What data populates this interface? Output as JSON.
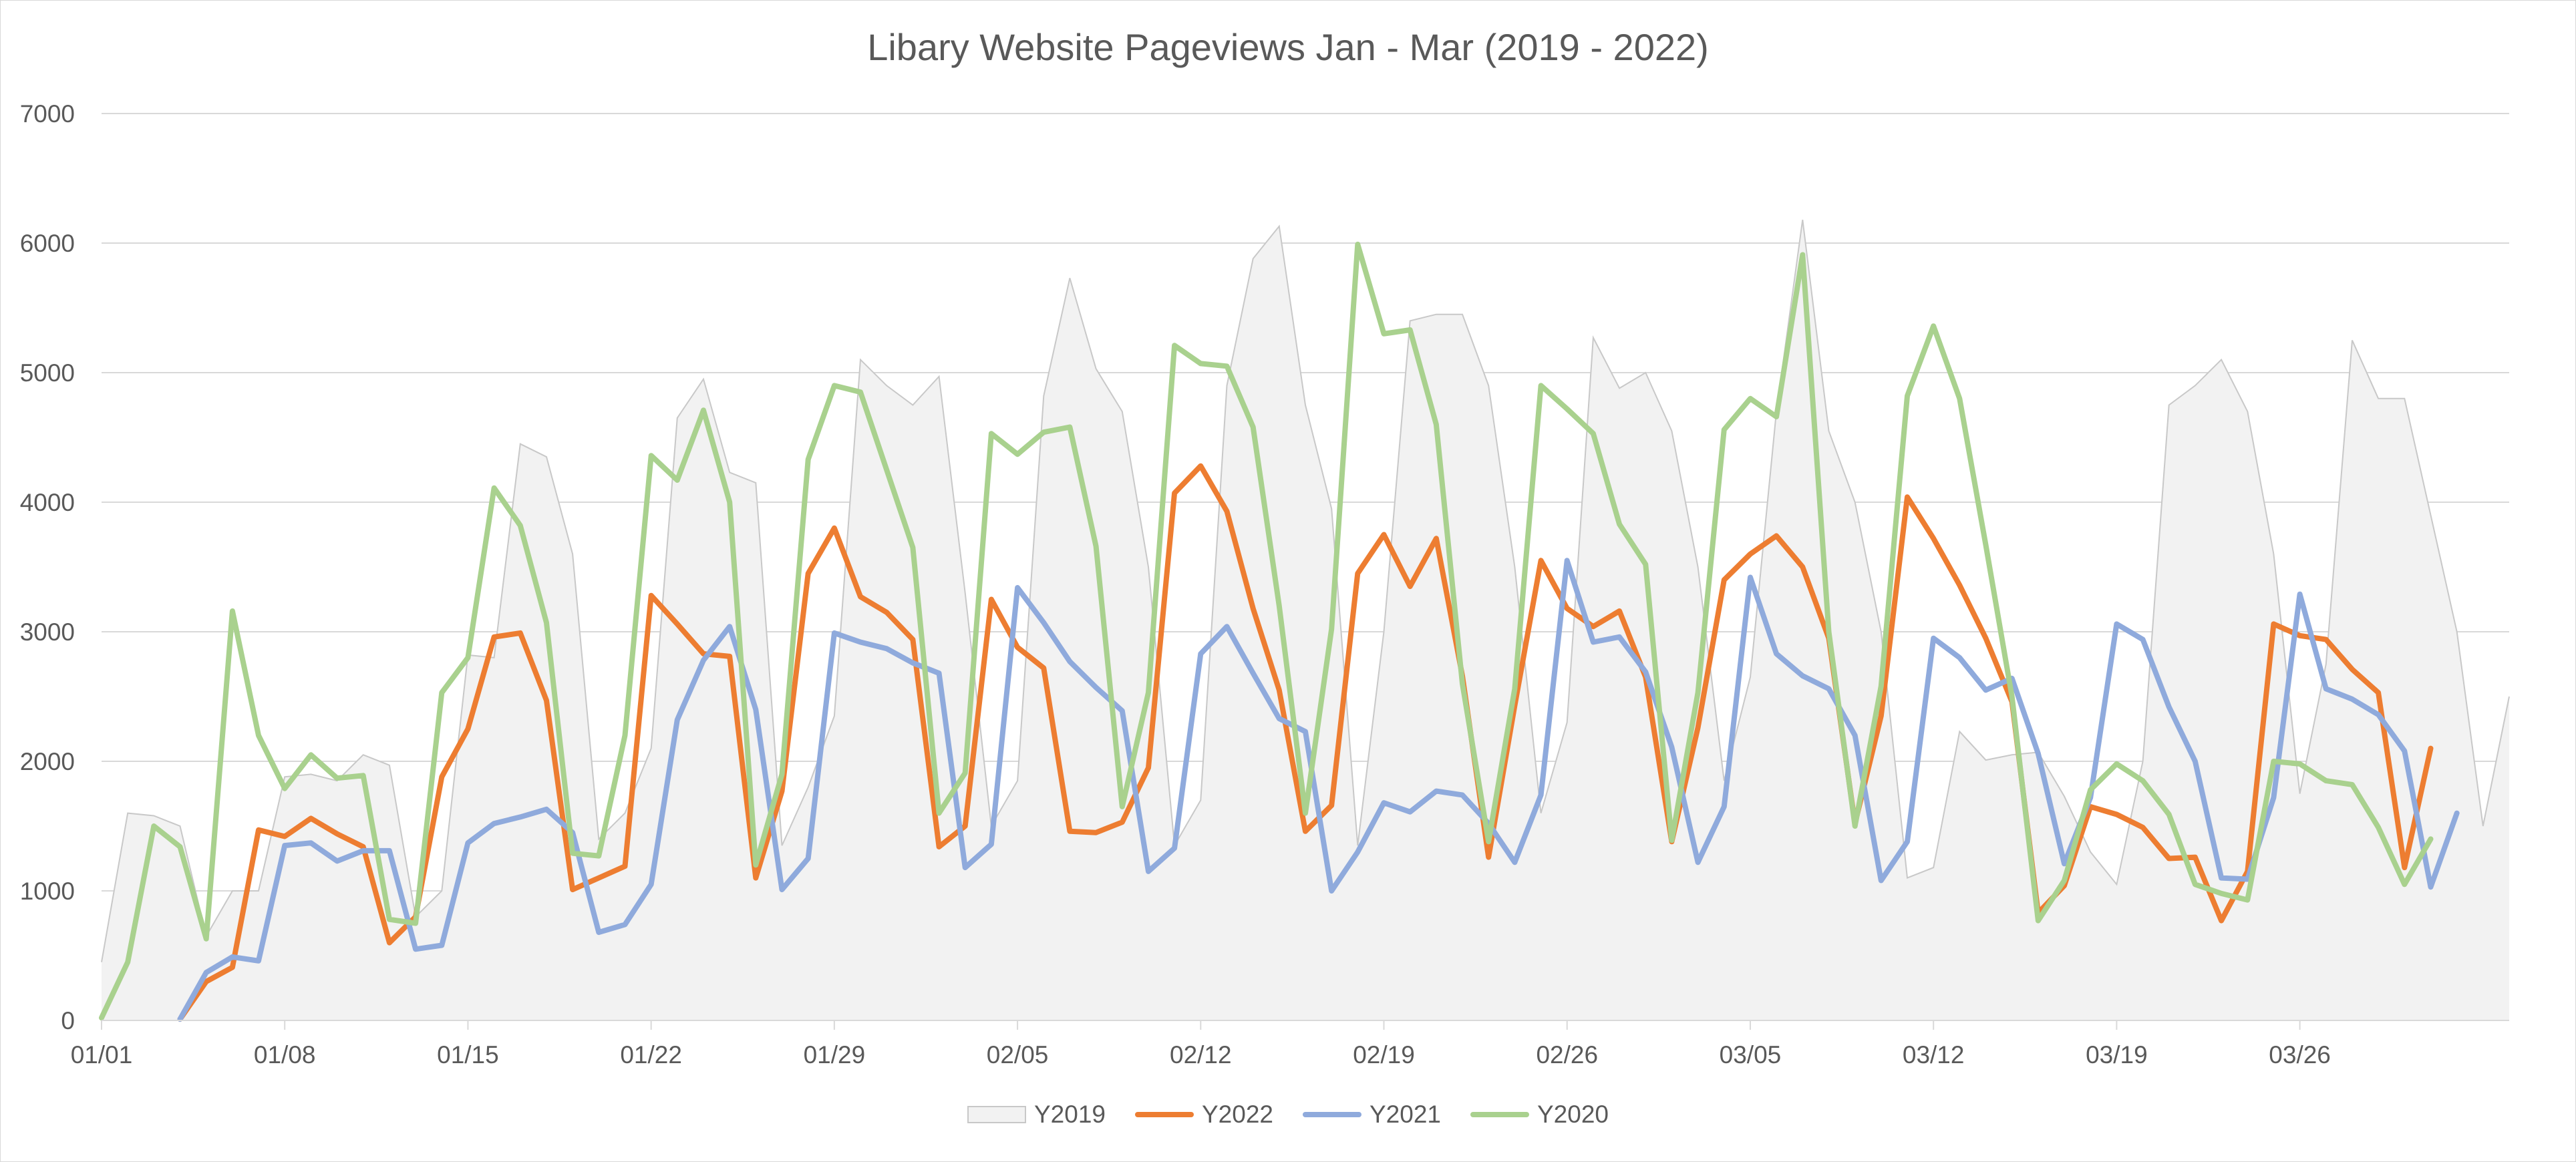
{
  "chart_data": {
    "type": "line",
    "title": "Libary Website Pageviews Jan - Mar (2019 - 2022)",
    "xlabel": "",
    "ylabel": "",
    "ylim": [
      0,
      7000
    ],
    "yticks": [
      0,
      1000,
      2000,
      3000,
      4000,
      5000,
      6000,
      7000
    ],
    "grid": true,
    "legend_position": "bottom",
    "x_start": "01/01",
    "x_tick_labels": [
      "01/01",
      "01/08",
      "01/15",
      "01/22",
      "01/29",
      "02/05",
      "02/12",
      "02/19",
      "02/26",
      "03/05",
      "03/12",
      "03/19",
      "03/26"
    ],
    "series": [
      {
        "name": "Y2019",
        "style": "area",
        "color": "#f2f2f2",
        "stroke": "#c8c8c8",
        "values": [
          450,
          1600,
          1580,
          1500,
          650,
          1000,
          1000,
          1880,
          1900,
          1850,
          2050,
          1970,
          800,
          1000,
          2820,
          2800,
          4450,
          4350,
          3600,
          1400,
          1600,
          2100,
          4650,
          4950,
          4230,
          4150,
          1350,
          1800,
          2350,
          5100,
          4900,
          4750,
          4970,
          3300,
          1500,
          1850,
          4820,
          5730,
          5030,
          4700,
          3500,
          1350,
          1700,
          4900,
          5880,
          6130,
          4750,
          3950,
          1350,
          3000,
          5400,
          5450,
          5450,
          4900,
          3500,
          1600,
          2300,
          5270,
          4880,
          5000,
          4550,
          3500,
          1850,
          2650,
          4700,
          6180,
          4550,
          4000,
          3000,
          1100,
          1180,
          2230,
          2010,
          2050,
          2070,
          1730,
          1300,
          1050,
          2000,
          4750,
          4900,
          5100,
          4700,
          3600,
          1750,
          2750,
          5250,
          4800,
          4800,
          3900,
          3000,
          1500,
          2500
        ]
      },
      {
        "name": "Y2022",
        "style": "line",
        "color": "#ed7d31",
        "values": [
          null,
          null,
          null,
          10,
          300,
          410,
          1470,
          1420,
          1560,
          1440,
          1340,
          600,
          800,
          1880,
          2250,
          2960,
          2990,
          2470,
          1010,
          1100,
          1190,
          3280,
          3060,
          2830,
          2810,
          1100,
          1770,
          3450,
          3800,
          3270,
          3150,
          2940,
          1340,
          1500,
          3250,
          2880,
          2720,
          1460,
          1450,
          1530,
          1950,
          4070,
          4280,
          3930,
          3180,
          2550,
          1460,
          1660,
          3450,
          3750,
          3350,
          3720,
          2660,
          1260,
          2430,
          3550,
          3180,
          3040,
          3160,
          2650,
          1380,
          2260,
          3400,
          3600,
          3740,
          3500,
          2950,
          1520,
          2350,
          4040,
          3720,
          3360,
          2950,
          2460,
          830,
          1040,
          1650,
          1590,
          1490,
          1250,
          1260,
          770,
          1150,
          3060,
          2970,
          2940,
          2710,
          2530,
          1180,
          2100
        ]
      },
      {
        "name": "Y2021",
        "style": "line",
        "color": "#8faadc",
        "values": [
          null,
          null,
          null,
          10,
          370,
          490,
          460,
          1350,
          1370,
          1230,
          1310,
          1310,
          550,
          580,
          1370,
          1520,
          1570,
          1630,
          1450,
          680,
          740,
          1050,
          2320,
          2780,
          3040,
          2400,
          1010,
          1250,
          2990,
          2920,
          2870,
          2760,
          2680,
          1180,
          1360,
          3340,
          3070,
          2770,
          2570,
          2390,
          1150,
          1330,
          2830,
          3040,
          2680,
          2330,
          2230,
          1000,
          1300,
          1680,
          1610,
          1770,
          1740,
          1520,
          1220,
          1740,
          3550,
          2920,
          2960,
          2690,
          2110,
          1220,
          1650,
          3420,
          2830,
          2660,
          2560,
          2200,
          1080,
          1380,
          2950,
          2800,
          2550,
          2640,
          2060,
          1210,
          1720,
          3060,
          2940,
          2420,
          2000,
          1100,
          1090,
          1720,
          3290,
          2560,
          2480,
          2360,
          2080,
          1030,
          1600
        ]
      },
      {
        "name": "Y2020",
        "style": "line",
        "color": "#a9d18e",
        "values": [
          20,
          450,
          1500,
          1340,
          630,
          3160,
          2200,
          1790,
          2050,
          1870,
          1890,
          780,
          750,
          2530,
          2800,
          4110,
          3820,
          3070,
          1290,
          1270,
          2200,
          4360,
          4170,
          4710,
          4000,
          1200,
          1900,
          4330,
          4900,
          4850,
          4250,
          3650,
          1600,
          1910,
          4530,
          4370,
          4540,
          4580,
          3660,
          1650,
          2530,
          5210,
          5070,
          5050,
          4580,
          3200,
          1600,
          3020,
          5990,
          5300,
          5330,
          4600,
          2600,
          1380,
          2560,
          4900,
          4720,
          4530,
          3830,
          3520,
          1390,
          2530,
          4560,
          4800,
          4660,
          5910,
          3000,
          1500,
          2580,
          4820,
          5360,
          4800,
          3670,
          2500,
          770,
          1080,
          1780,
          1980,
          1850,
          1590,
          1050,
          980,
          930,
          2000,
          1980,
          1850,
          1820,
          1490,
          1050,
          1400
        ]
      }
    ]
  }
}
